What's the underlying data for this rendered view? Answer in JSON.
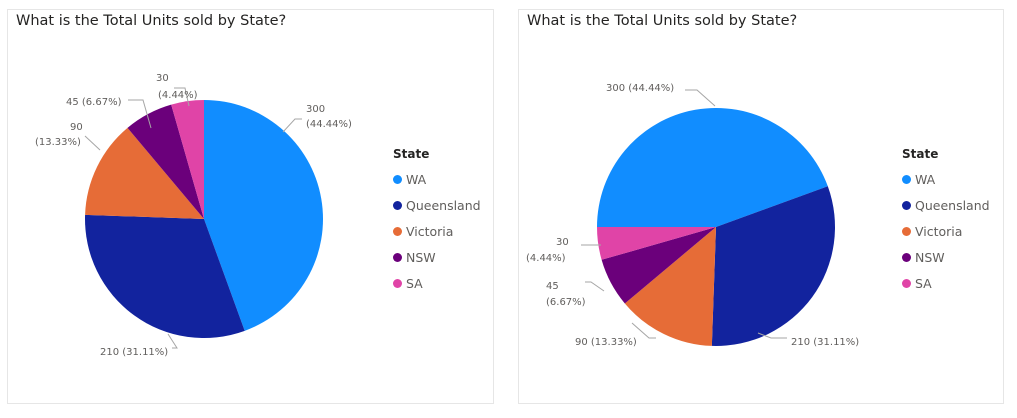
{
  "chart_data": [
    {
      "type": "pie",
      "title": "What is the Total Units sold by State?",
      "legend_title": "State",
      "legend_position": "right",
      "categories": [
        "WA",
        "Queensland",
        "Victoria",
        "NSW",
        "SA"
      ],
      "values": [
        300,
        210,
        90,
        45,
        30
      ],
      "percentages": [
        "44.44%",
        "31.11%",
        "13.33%",
        "6.67%",
        "4.44%"
      ],
      "colors": [
        "#118dff",
        "#12239e",
        "#e66c37",
        "#6b007b",
        "#e044a7"
      ],
      "start_angle_deg": 0,
      "direction": "clockwise",
      "data_labels": [
        "300\n(44.44%)",
        "210 (31.11%)",
        "90\n(13.33%)",
        "45 (6.67%)",
        "30\n(4.44%)"
      ]
    },
    {
      "type": "pie",
      "title": "What is the Total Units sold by State?",
      "legend_title": "State",
      "legend_position": "right",
      "categories": [
        "WA",
        "Queensland",
        "Victoria",
        "NSW",
        "SA"
      ],
      "values": [
        300,
        210,
        90,
        45,
        30
      ],
      "percentages": [
        "44.44%",
        "31.11%",
        "13.33%",
        "6.67%",
        "4.44%"
      ],
      "colors": [
        "#118dff",
        "#12239e",
        "#e66c37",
        "#6b007b",
        "#e044a7"
      ],
      "start_angle_deg": 270,
      "direction": "clockwise",
      "data_labels": [
        "300 (44.44%)",
        "210 (31.11%)",
        "90 (13.33%)",
        "45\n(6.67%)",
        "30\n(4.44%)"
      ]
    }
  ]
}
